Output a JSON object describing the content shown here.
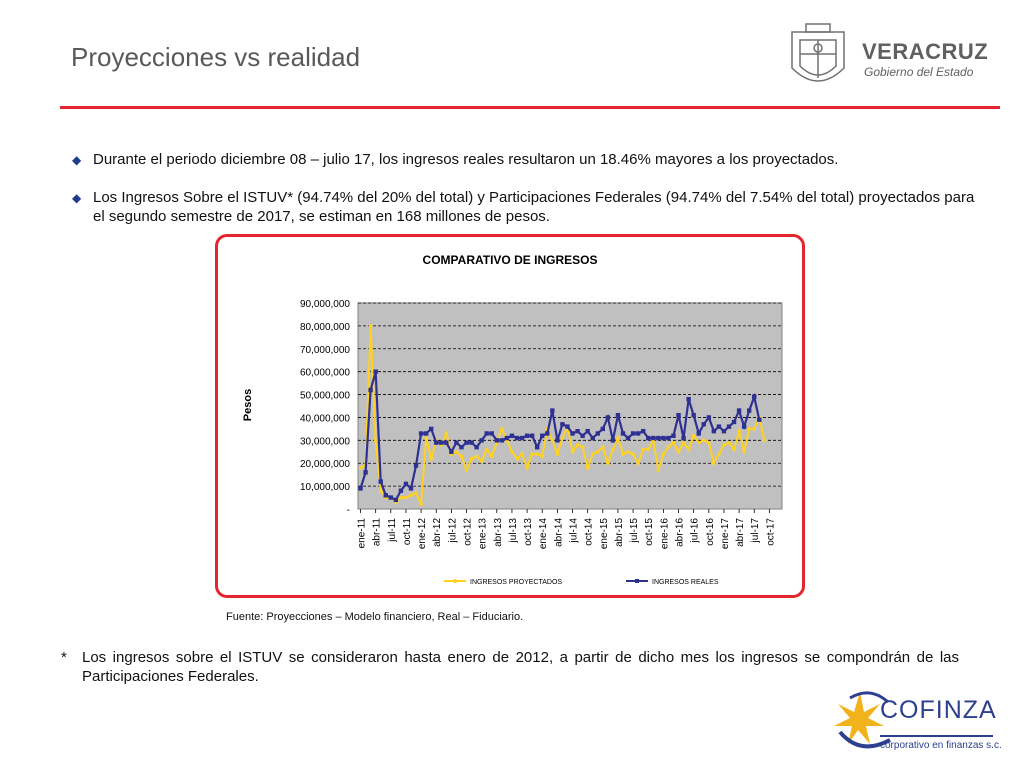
{
  "header": {
    "title": "Proyecciones vs realidad",
    "gov_logo": {
      "name": "VERACRUZ",
      "subtitle": "Gobierno del Estado",
      "icon": "coat-of-arms-icon"
    }
  },
  "bullets": [
    "Durante el periodo diciembre 08 – julio 17, los ingresos reales resultaron un 18.46% mayores a los proyectados.",
    "Los Ingresos Sobre el ISTUV* (94.74% del 20% del total) y Participaciones Federales (94.74% del 7.54% del total) proyectados para el segundo semestre de 2017, se estiman en 168 millones de pesos."
  ],
  "bullet_marker": "◆",
  "source": "Fuente: Proyecciones – Modelo financiero, Real – Fiduciario.",
  "footnote": {
    "mark": "*",
    "text": "Los ingresos sobre el ISTUV se consideraron hasta enero de 2012, a partir de dicho mes los ingresos se compondrán de las Participaciones Federales."
  },
  "footer_logo": {
    "name": "COFINZA",
    "subtitle": "corporativo en finanzas s.c."
  },
  "colors": {
    "accent_red": "#e3262d",
    "proyectados": "#ffd21f",
    "reales": "#2e3192",
    "plot_bg": "#c0c0c0",
    "bullet_blue": "#1f3c8f"
  },
  "chart_data": {
    "type": "line",
    "title": "COMPARATIVO  DE INGRESOS",
    "ylabel": "Pesos",
    "xlabel": "",
    "ylim": [
      0,
      90000000
    ],
    "yticks": [
      0,
      10000000,
      20000000,
      30000000,
      40000000,
      50000000,
      60000000,
      70000000,
      80000000,
      90000000
    ],
    "ytick_labels": [
      "-",
      "10,000,000",
      "20,000,000",
      "30,000,000",
      "40,000,000",
      "50,000,000",
      "60,000,000",
      "70,000,000",
      "80,000,000",
      "90,000,000"
    ],
    "x_range": [
      "ene-11",
      "dic-17"
    ],
    "xtick_labels": [
      "ene-11",
      "abr-11",
      "jul-11",
      "oct-11",
      "ene-12",
      "abr-12",
      "jul-12",
      "oct-12",
      "ene-13",
      "abr-13",
      "jul-13",
      "oct-13",
      "ene-14",
      "abr-14",
      "jul-14",
      "oct-14",
      "ene-15",
      "abr-15",
      "jul-15",
      "oct-15",
      "ene-16",
      "abr-16",
      "jul-16",
      "oct-16",
      "ene-17",
      "abr-17",
      "jul-17",
      "oct-17"
    ],
    "grid": true,
    "legend_position": "bottom",
    "series": [
      {
        "name": "INGRESOS PROYECTADOS",
        "color": "#ffd21f",
        "values": [
          18000000,
          19000000,
          80000000,
          30000000,
          8000000,
          5000000,
          5000000,
          3000000,
          5000000,
          5000000,
          6000000,
          7000000,
          2000000,
          31000000,
          22000000,
          30000000,
          28000000,
          33000000,
          24000000,
          25000000,
          23000000,
          17000000,
          22000000,
          23000000,
          21000000,
          26000000,
          23000000,
          29000000,
          35000000,
          30000000,
          25000000,
          22000000,
          24000000,
          18000000,
          24000000,
          24000000,
          23000000,
          35000000,
          30000000,
          24000000,
          31000000,
          36000000,
          25000000,
          28000000,
          27000000,
          18000000,
          24000000,
          25000000,
          27000000,
          20000000,
          26000000,
          31000000,
          24000000,
          25000000,
          24000000,
          20000000,
          26000000,
          26000000,
          30000000,
          17000000,
          24000000,
          27000000,
          29000000,
          25000000,
          29000000,
          26000000,
          32000000,
          29000000,
          30000000,
          29000000,
          20000000,
          24000000,
          28000000,
          29000000,
          26000000,
          34000000,
          25000000,
          35000000,
          35000000,
          40000000,
          30000000
        ]
      },
      {
        "name": "INGRESOS REALES",
        "color": "#2e3192",
        "values": [
          9000000,
          16000000,
          52000000,
          60000000,
          12000000,
          6000000,
          5000000,
          4000000,
          8000000,
          11000000,
          9000000,
          19000000,
          33000000,
          33000000,
          35000000,
          29000000,
          29000000,
          29000000,
          25000000,
          29000000,
          27000000,
          29000000,
          29000000,
          27000000,
          30000000,
          33000000,
          33000000,
          30000000,
          30000000,
          31000000,
          32000000,
          31000000,
          31000000,
          32000000,
          32000000,
          27000000,
          32000000,
          33000000,
          43000000,
          30000000,
          37000000,
          36000000,
          33000000,
          34000000,
          32000000,
          34000000,
          31000000,
          33000000,
          35000000,
          40000000,
          30000000,
          41000000,
          33000000,
          31000000,
          33000000,
          33000000,
          34000000,
          31000000,
          31000000,
          31000000,
          31000000,
          31000000,
          32000000,
          41000000,
          31000000,
          48000000,
          41000000,
          33000000,
          37000000,
          40000000,
          34000000,
          36000000,
          34000000,
          36000000,
          38000000,
          43000000,
          36000000,
          43000000,
          49000000,
          39000000
        ]
      }
    ]
  }
}
